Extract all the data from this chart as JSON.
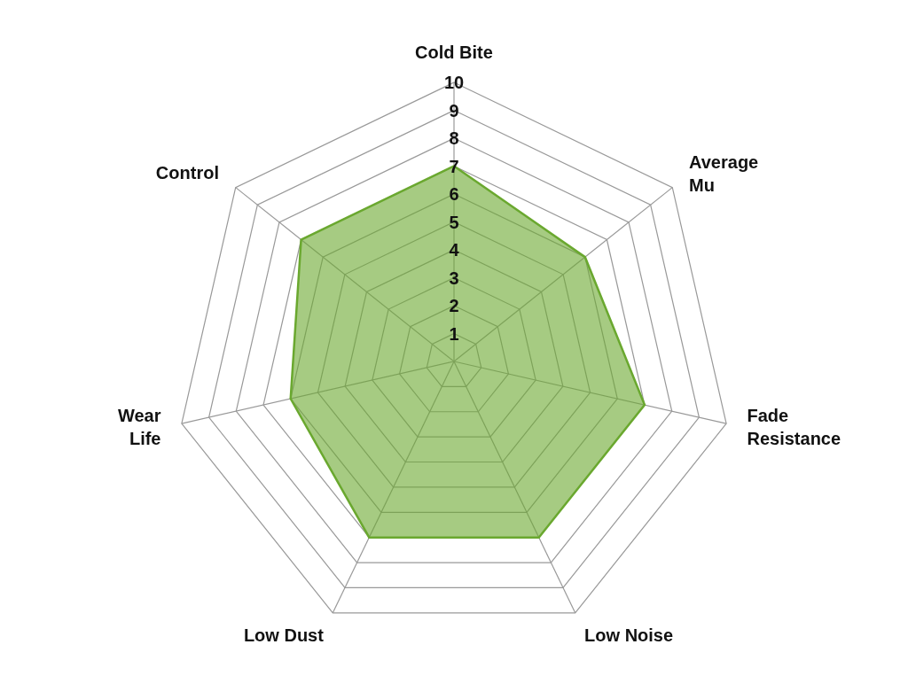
{
  "chart_data": {
    "type": "radar",
    "categories": [
      "Cold Bite",
      "Average Mu",
      "Fade Resistance",
      "Low Noise",
      "Low Dust",
      "Wear Life",
      "Control"
    ],
    "series": [
      {
        "color": "#6aa82f",
        "values": [
          7,
          6,
          7,
          7,
          7,
          6,
          7
        ]
      }
    ],
    "ylim": [
      0,
      10
    ],
    "yticks": [
      1,
      2,
      3,
      4,
      5,
      6,
      7,
      8,
      9,
      10
    ],
    "legend": false
  }
}
